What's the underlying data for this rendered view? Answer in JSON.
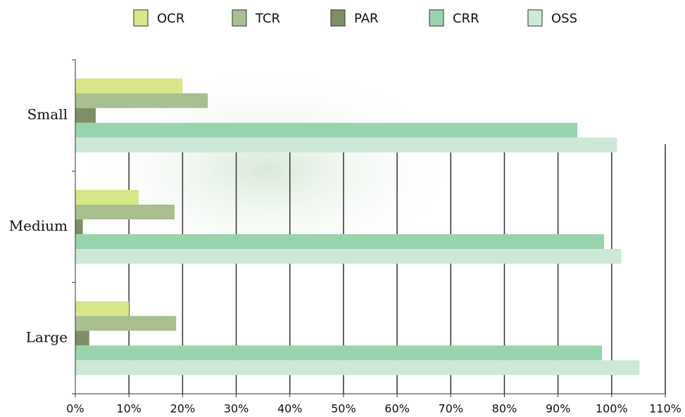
{
  "chart_data": {
    "type": "hbar",
    "categories": [
      "Small",
      "Medium",
      "Large"
    ],
    "series": [
      {
        "name": "OCR",
        "color": "#d8e68a",
        "values": [
          20,
          11.8,
          10
        ]
      },
      {
        "name": "TCR",
        "color": "#a9bf8f",
        "values": [
          24.7,
          18.5,
          18.8
        ]
      },
      {
        "name": "PAR",
        "color": "#7e8f68",
        "values": [
          3.8,
          1.4,
          2.6
        ]
      },
      {
        "name": "CRR",
        "color": "#99d3ae",
        "values": [
          93.6,
          98.6,
          98.2
        ]
      },
      {
        "name": "OSS",
        "color": "#cde8d6",
        "values": [
          101,
          101.8,
          105.2
        ]
      }
    ],
    "xlim": [
      0,
      110
    ],
    "xticks": [
      {
        "value": 0,
        "label": "0%"
      },
      {
        "value": 10,
        "label": "10%"
      },
      {
        "value": 20,
        "label": "20%"
      },
      {
        "value": 30,
        "label": "30%"
      },
      {
        "value": 40,
        "label": "40%"
      },
      {
        "value": 50,
        "label": "50%"
      },
      {
        "value": 60,
        "label": "60%"
      },
      {
        "value": 70,
        "label": "70%"
      },
      {
        "value": 80,
        "label": "80%"
      },
      {
        "value": 90,
        "label": "90%"
      },
      {
        "value": 100,
        "label": "100%"
      },
      {
        "value": 110,
        "label": "110%"
      }
    ],
    "grid": true
  }
}
